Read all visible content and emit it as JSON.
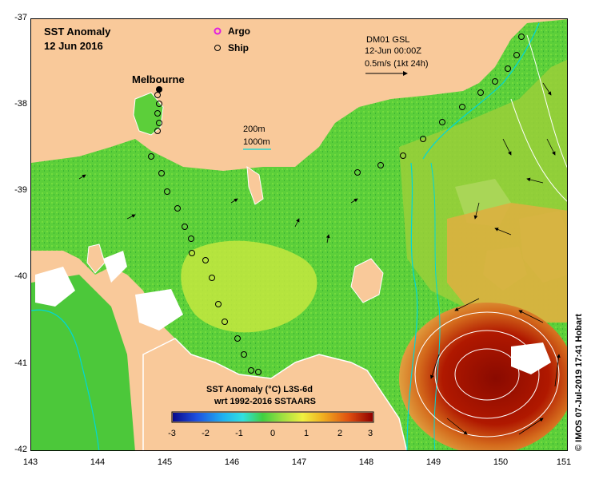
{
  "title": {
    "line1": "SST Anomaly",
    "line2": "12 Jun 2016"
  },
  "legend": {
    "argo": "Argo",
    "ship": "Ship"
  },
  "place_label": "Melbourne",
  "depth_legend": {
    "d200": "200m",
    "d1000": "1000m"
  },
  "drifter": {
    "id": "DM01 GSL",
    "time": "12-Jun 00:00Z",
    "scale": "0.5m/s (1kt 24h)"
  },
  "colorbar": {
    "title": "SST Anomaly (°C) L3S-6d",
    "subtitle": "wrt 1992-2016 SSTAARS",
    "ticks": [
      "-3",
      "-2",
      "-1",
      "0",
      "1",
      "2",
      "3"
    ]
  },
  "axes": {
    "x_ticks": [
      "143",
      "144",
      "145",
      "146",
      "147",
      "148",
      "149",
      "150",
      "151"
    ],
    "y_ticks": [
      "-37",
      "-38",
      "-39",
      "-40",
      "-41",
      "-42"
    ]
  },
  "credit": "© IMOS 07-Jul-2019 17:41 Hobart",
  "colors": {
    "land": "#f9c99a",
    "warm_core": "#a00c00",
    "anomaly_green": "#33c833",
    "shelf_cyan": "#00d7d7"
  }
}
